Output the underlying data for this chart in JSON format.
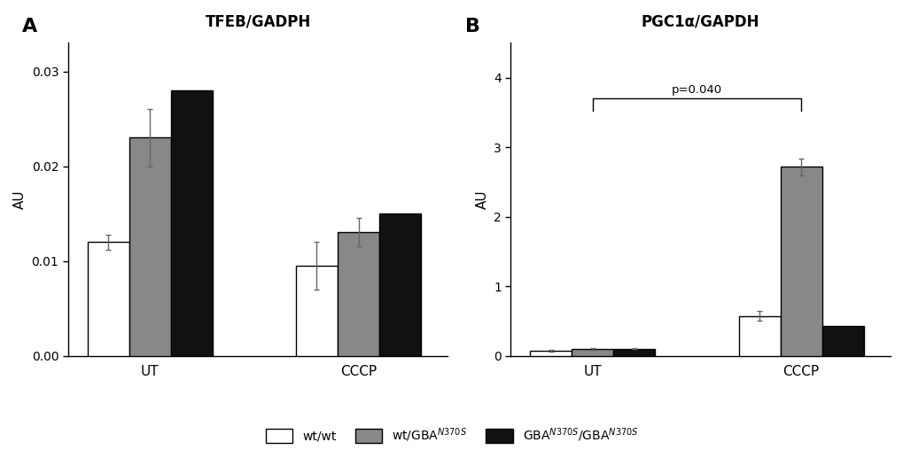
{
  "panel_A": {
    "title": "TFEB/GADPH",
    "ylabel": "AU",
    "ylim": [
      0,
      0.033
    ],
    "yticks": [
      0.0,
      0.01,
      0.02,
      0.03
    ],
    "groups": [
      "UT",
      "CCCP"
    ],
    "bar_values": [
      [
        0.012,
        0.023,
        0.028
      ],
      [
        0.0095,
        0.013,
        0.015
      ]
    ],
    "bar_errors": [
      [
        0.0008,
        0.003,
        0.0
      ],
      [
        0.0025,
        0.0015,
        0.0
      ]
    ],
    "bar_colors": [
      "white",
      "#888888",
      "#111111"
    ],
    "bar_edgecolors": [
      "black",
      "black",
      "black"
    ]
  },
  "panel_B": {
    "title": "PGC1α/GAPDH",
    "ylabel": "AU",
    "ylim": [
      0,
      4.5
    ],
    "yticks": [
      0,
      1,
      2,
      3,
      4
    ],
    "groups": [
      "UT",
      "CCCP"
    ],
    "bar_values": [
      [
        0.07,
        0.1,
        0.1
      ],
      [
        0.57,
        2.72,
        0.43
      ]
    ],
    "bar_errors": [
      [
        0.01,
        0.015,
        0.005
      ],
      [
        0.07,
        0.12,
        0.0
      ]
    ],
    "bar_colors": [
      "white",
      "#888888",
      "#111111"
    ],
    "bar_edgecolors": [
      "black",
      "black",
      "black"
    ],
    "sig_bracket": {
      "y": 3.7,
      "label": "p=0.040"
    }
  },
  "legend_labels": [
    "wt/wt",
    "wt/GBA$^{N370S}$",
    "GBA$^{N370S}$/GBA$^{N370S}$"
  ],
  "legend_colors": [
    "white",
    "#888888",
    "#111111"
  ],
  "legend_edgecolors": [
    "black",
    "black",
    "black"
  ],
  "bar_width": 0.28,
  "label_A": "A",
  "label_B": "B"
}
